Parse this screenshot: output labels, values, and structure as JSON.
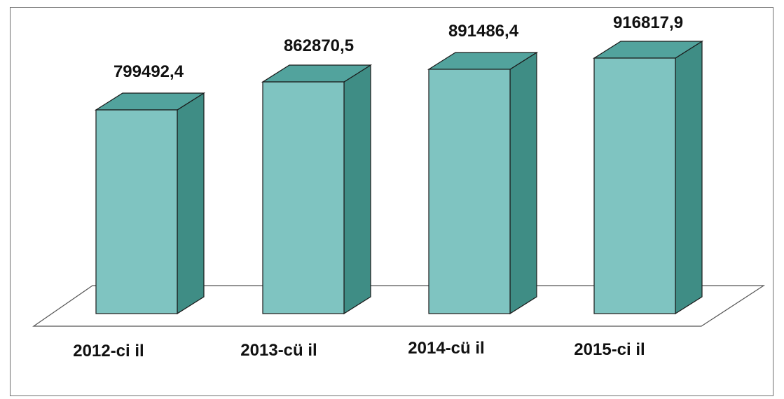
{
  "chart_data": {
    "type": "bar",
    "categories": [
      "2012-ci il",
      "2013-cü il",
      "2014-cü il",
      "2015-ci il"
    ],
    "values": [
      799492.4,
      862870.5,
      891486.4,
      916817.9
    ],
    "value_labels": [
      "799492,4",
      "862870,5",
      "891486,4",
      "916817,9"
    ],
    "title": "",
    "xlabel": "",
    "ylabel": "",
    "grid": false,
    "legend": "none",
    "colors": {
      "front": "#7fc4c1",
      "top": "#52a39d",
      "side": "#3f8d85",
      "outline": "#1a1a1a",
      "floor": "#555555"
    }
  }
}
